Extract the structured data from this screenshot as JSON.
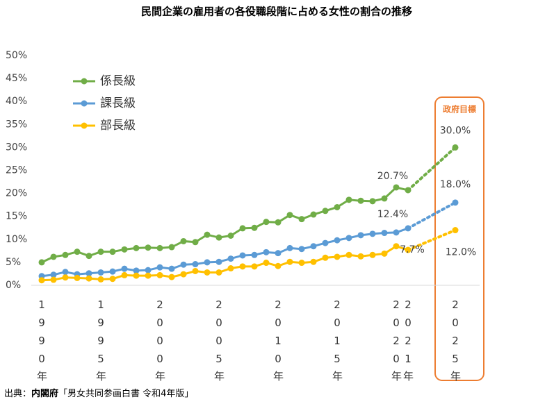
{
  "chart_data": {
    "type": "line",
    "title": "民間企業の雇用者の各役職段階に占める女性の割合の推移",
    "x": [
      1990,
      1991,
      1992,
      1993,
      1994,
      1995,
      1996,
      1997,
      1998,
      1999,
      2000,
      2001,
      2002,
      2003,
      2004,
      2005,
      2006,
      2007,
      2008,
      2009,
      2010,
      2011,
      2012,
      2013,
      2014,
      2015,
      2016,
      2017,
      2018,
      2019,
      2020,
      2021
    ],
    "series": [
      {
        "name": "係長級",
        "color": "#70ad47",
        "values": [
          5.0,
          6.2,
          6.6,
          7.3,
          6.4,
          7.3,
          7.3,
          7.8,
          8.1,
          8.2,
          8.1,
          8.3,
          9.6,
          9.4,
          11.0,
          10.4,
          10.8,
          12.4,
          12.5,
          13.8,
          13.7,
          15.3,
          14.4,
          15.4,
          16.2,
          17.0,
          18.6,
          18.4,
          18.3,
          18.9,
          21.3,
          20.7
        ],
        "value_labels": [
          null,
          null,
          null,
          null,
          null,
          null,
          null,
          null,
          null,
          null,
          null,
          null,
          null,
          null,
          null,
          null,
          null,
          null,
          null,
          null,
          null,
          null,
          null,
          null,
          null,
          null,
          null,
          null,
          null,
          null,
          null,
          "20.7%"
        ],
        "target_value": 30.0,
        "target_label": "30.0%"
      },
      {
        "name": "課長級",
        "color": "#5b9bd5",
        "values": [
          2.0,
          2.3,
          2.9,
          2.4,
          2.6,
          2.8,
          3.0,
          3.6,
          3.2,
          3.3,
          3.9,
          3.6,
          4.5,
          4.6,
          5.0,
          5.1,
          5.8,
          6.5,
          6.6,
          7.2,
          7.0,
          8.1,
          7.9,
          8.5,
          9.2,
          9.8,
          10.3,
          10.9,
          11.2,
          11.4,
          11.5,
          12.4
        ],
        "value_labels": [
          null,
          null,
          null,
          null,
          null,
          null,
          null,
          null,
          null,
          null,
          null,
          null,
          null,
          null,
          null,
          null,
          null,
          null,
          null,
          null,
          null,
          null,
          null,
          null,
          null,
          null,
          null,
          null,
          null,
          null,
          null,
          "12.4%"
        ],
        "target_value": 18.0,
        "target_label": "18.0%"
      },
      {
        "name": "部長級",
        "color": "#ffc000",
        "values": [
          1.1,
          1.2,
          1.7,
          1.6,
          1.5,
          1.3,
          1.4,
          2.2,
          2.1,
          2.1,
          2.2,
          1.8,
          2.4,
          3.1,
          2.8,
          2.8,
          3.7,
          4.1,
          4.1,
          4.9,
          4.2,
          5.1,
          4.9,
          5.1,
          6.0,
          6.2,
          6.6,
          6.3,
          6.6,
          6.9,
          8.5,
          7.7
        ],
        "value_labels": [
          null,
          null,
          null,
          null,
          null,
          null,
          null,
          null,
          null,
          null,
          null,
          null,
          null,
          null,
          null,
          null,
          null,
          null,
          null,
          null,
          null,
          null,
          null,
          null,
          null,
          null,
          null,
          null,
          null,
          null,
          null,
          "7.7%"
        ],
        "target_value": 12.0,
        "target_label": "12.0%"
      }
    ],
    "target_x": 2025,
    "target_title": "政府目標",
    "ylim": [
      0,
      50
    ],
    "yticks": [
      {
        "value": 0,
        "label": "0%"
      },
      {
        "value": 5,
        "label": "5%"
      },
      {
        "value": 10,
        "label": "10%"
      },
      {
        "value": 15,
        "label": "15%"
      },
      {
        "value": 20,
        "label": "20%"
      },
      {
        "value": 25,
        "label": "25%"
      },
      {
        "value": 30,
        "label": "30%"
      },
      {
        "value": 35,
        "label": "35%"
      },
      {
        "value": 40,
        "label": "40%"
      },
      {
        "value": 45,
        "label": "45%"
      },
      {
        "value": 50,
        "label": "50%"
      }
    ],
    "xticks": [
      {
        "value": 1990,
        "label": "1990年"
      },
      {
        "value": 1995,
        "label": "1995年"
      },
      {
        "value": 2000,
        "label": "2000年"
      },
      {
        "value": 2005,
        "label": "2005年"
      },
      {
        "value": 2010,
        "label": "2010年"
      },
      {
        "value": 2015,
        "label": "2015年"
      },
      {
        "value": 2020,
        "label": "2020年"
      },
      {
        "value": 2021,
        "label": "2021年"
      },
      {
        "value": 2025,
        "label": "2025年"
      }
    ],
    "legend": "upper-left",
    "source_prefix": "出典：",
    "source_org": "内閣府",
    "source_rest": "「男女共同参画白書 令和4年版」"
  }
}
